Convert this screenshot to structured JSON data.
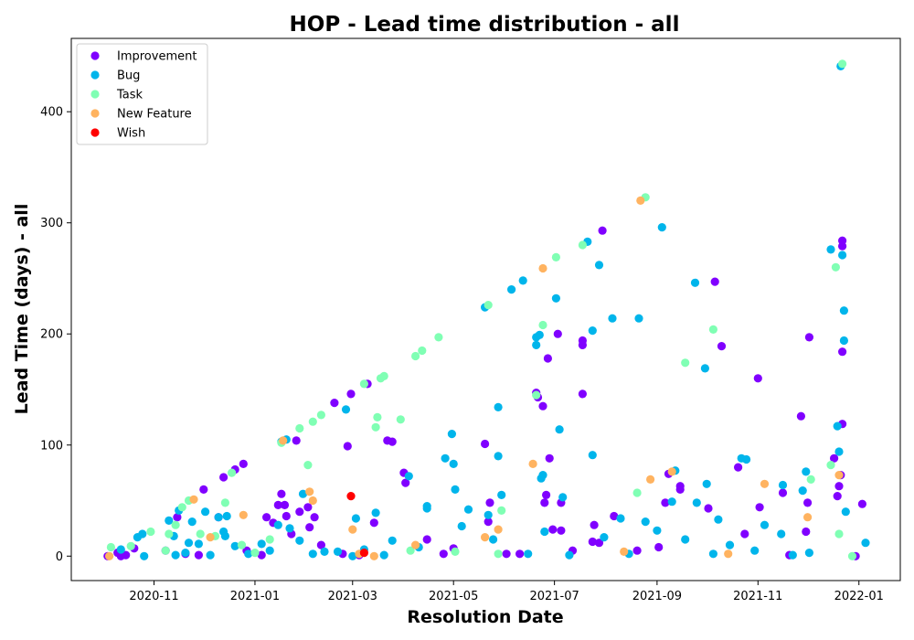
{
  "chart_data": {
    "type": "scatter",
    "title": "HOP - Lead time distribution - all",
    "xlabel": "Resolution Date",
    "ylabel": "Lead Time (days) - all",
    "x_ticks": [
      "2020-11",
      "2021-01",
      "2021-03",
      "2021-05",
      "2021-07",
      "2021-09",
      "2021-11",
      "2022-01"
    ],
    "y_ticks": [
      0,
      100,
      200,
      300,
      400
    ],
    "xlim": [
      "2020-09-12",
      "2022-01-26"
    ],
    "ylim": [
      -22,
      466
    ],
    "legend_position": "upper-left",
    "grid": false,
    "series": [
      {
        "name": "Improvement",
        "color": "#8000ff",
        "points": [
          [
            "2020-10-04",
            0
          ],
          [
            "2020-10-10",
            3
          ],
          [
            "2020-10-12",
            0
          ],
          [
            "2020-10-15",
            1
          ],
          [
            "2020-10-20",
            7
          ],
          [
            "2020-11-08",
            5
          ],
          [
            "2020-11-15",
            35
          ],
          [
            "2020-11-20",
            2
          ],
          [
            "2020-11-28",
            1
          ],
          [
            "2020-12-01",
            60
          ],
          [
            "2020-12-10",
            35
          ],
          [
            "2020-12-13",
            71
          ],
          [
            "2020-12-20",
            78
          ],
          [
            "2020-12-25",
            83
          ],
          [
            "2020-12-27",
            5
          ],
          [
            "2021-01-05",
            1
          ],
          [
            "2021-01-08",
            35
          ],
          [
            "2021-01-12",
            30
          ],
          [
            "2021-01-15",
            46
          ],
          [
            "2021-01-17",
            56
          ],
          [
            "2021-01-19",
            46
          ],
          [
            "2021-01-20",
            36
          ],
          [
            "2021-01-23",
            20
          ],
          [
            "2021-01-26",
            104
          ],
          [
            "2021-01-28",
            40
          ],
          [
            "2021-02-02",
            44
          ],
          [
            "2021-02-03",
            26
          ],
          [
            "2021-02-06",
            35
          ],
          [
            "2021-02-10",
            10
          ],
          [
            "2021-02-18",
            138
          ],
          [
            "2021-02-23",
            2
          ],
          [
            "2021-02-26",
            99
          ],
          [
            "2021-02-28",
            146
          ],
          [
            "2021-03-05",
            1
          ],
          [
            "2021-03-10",
            155
          ],
          [
            "2021-03-14",
            30
          ],
          [
            "2021-03-22",
            104
          ],
          [
            "2021-03-25",
            103
          ],
          [
            "2021-04-01",
            75
          ],
          [
            "2021-04-02",
            66
          ],
          [
            "2021-04-15",
            15
          ],
          [
            "2021-04-25",
            2
          ],
          [
            "2021-05-01",
            7
          ],
          [
            "2021-05-20",
            101
          ],
          [
            "2021-05-22",
            31
          ],
          [
            "2021-05-23",
            48
          ],
          [
            "2021-06-02",
            2
          ],
          [
            "2021-06-10",
            2
          ],
          [
            "2021-06-20",
            147
          ],
          [
            "2021-06-21",
            143
          ],
          [
            "2021-06-24",
            135
          ],
          [
            "2021-06-25",
            48
          ],
          [
            "2021-06-26",
            55
          ],
          [
            "2021-06-27",
            178
          ],
          [
            "2021-06-28",
            88
          ],
          [
            "2021-06-30",
            24
          ],
          [
            "2021-07-03",
            200
          ],
          [
            "2021-07-05",
            48
          ],
          [
            "2021-07-05",
            23
          ],
          [
            "2021-07-12",
            5
          ],
          [
            "2021-07-18",
            146
          ],
          [
            "2021-07-18",
            194
          ],
          [
            "2021-07-18",
            190
          ],
          [
            "2021-07-24",
            13
          ],
          [
            "2021-07-25",
            28
          ],
          [
            "2021-07-28",
            12
          ],
          [
            "2021-07-30",
            293
          ],
          [
            "2021-08-06",
            36
          ],
          [
            "2021-08-20",
            5
          ],
          [
            "2021-09-02",
            8
          ],
          [
            "2021-09-06",
            48
          ],
          [
            "2021-09-08",
            74
          ],
          [
            "2021-09-15",
            60
          ],
          [
            "2021-09-15",
            63
          ],
          [
            "2021-10-02",
            43
          ],
          [
            "2021-10-06",
            247
          ],
          [
            "2021-10-10",
            189
          ],
          [
            "2021-10-20",
            80
          ],
          [
            "2021-10-24",
            20
          ],
          [
            "2021-11-01",
            160
          ],
          [
            "2021-11-02",
            44
          ],
          [
            "2021-11-16",
            57
          ],
          [
            "2021-11-20",
            1
          ],
          [
            "2021-11-27",
            126
          ],
          [
            "2021-11-30",
            22
          ],
          [
            "2021-12-02",
            197
          ],
          [
            "2021-12-01",
            48
          ],
          [
            "2021-12-17",
            88
          ],
          [
            "2021-12-19",
            54
          ],
          [
            "2021-12-20",
            63
          ],
          [
            "2021-12-21",
            73
          ],
          [
            "2021-12-22",
            284
          ],
          [
            "2021-12-22",
            279
          ],
          [
            "2021-12-22",
            184
          ],
          [
            "2021-12-22",
            119
          ],
          [
            "2021-12-30",
            0
          ],
          [
            "2022-01-03",
            47
          ]
        ]
      },
      {
        "name": "Bug",
        "color": "#00b5eb",
        "points": [
          [
            "2020-10-12",
            6
          ],
          [
            "2020-10-22",
            17
          ],
          [
            "2020-10-25",
            20
          ],
          [
            "2020-10-26",
            0
          ],
          [
            "2020-11-10",
            32
          ],
          [
            "2020-11-13",
            18
          ],
          [
            "2020-11-14",
            1
          ],
          [
            "2020-11-16",
            41
          ],
          [
            "2020-11-20",
            3
          ],
          [
            "2020-11-22",
            12
          ],
          [
            "2020-11-24",
            31
          ],
          [
            "2020-11-28",
            11
          ],
          [
            "2020-12-02",
            40
          ],
          [
            "2020-12-05",
            1
          ],
          [
            "2020-12-10",
            35
          ],
          [
            "2020-12-13",
            22
          ],
          [
            "2020-12-14",
            18
          ],
          [
            "2020-12-15",
            36
          ],
          [
            "2020-12-20",
            9
          ],
          [
            "2020-12-28",
            2
          ],
          [
            "2021-01-05",
            11
          ],
          [
            "2021-01-10",
            5
          ],
          [
            "2021-01-15",
            28
          ],
          [
            "2021-01-17",
            103
          ],
          [
            "2021-01-20",
            105
          ],
          [
            "2021-01-22",
            25
          ],
          [
            "2021-01-28",
            14
          ],
          [
            "2021-01-30",
            56
          ],
          [
            "2021-02-05",
            2
          ],
          [
            "2021-02-12",
            4
          ],
          [
            "2021-02-20",
            4
          ],
          [
            "2021-02-25",
            132
          ],
          [
            "2021-03-01",
            0
          ],
          [
            "2021-03-03",
            34
          ],
          [
            "2021-03-08",
            6
          ],
          [
            "2021-03-15",
            39
          ],
          [
            "2021-03-20",
            1
          ],
          [
            "2021-03-25",
            14
          ],
          [
            "2021-04-04",
            72
          ],
          [
            "2021-04-10",
            8
          ],
          [
            "2021-04-15",
            43
          ],
          [
            "2021-04-15",
            45
          ],
          [
            "2021-04-26",
            88
          ],
          [
            "2021-04-30",
            110
          ],
          [
            "2021-05-01",
            83
          ],
          [
            "2021-05-02",
            60
          ],
          [
            "2021-05-06",
            27
          ],
          [
            "2021-05-10",
            42
          ],
          [
            "2021-05-20",
            224
          ],
          [
            "2021-05-22",
            37
          ],
          [
            "2021-05-25",
            15
          ],
          [
            "2021-05-28",
            134
          ],
          [
            "2021-05-28",
            90
          ],
          [
            "2021-05-30",
            55
          ],
          [
            "2021-06-05",
            240
          ],
          [
            "2021-06-12",
            248
          ],
          [
            "2021-06-15",
            2
          ],
          [
            "2021-06-20",
            197
          ],
          [
            "2021-06-20",
            190
          ],
          [
            "2021-06-22",
            199
          ],
          [
            "2021-06-23",
            70
          ],
          [
            "2021-06-24",
            73
          ],
          [
            "2021-06-25",
            22
          ],
          [
            "2021-07-02",
            232
          ],
          [
            "2021-07-04",
            114
          ],
          [
            "2021-07-06",
            53
          ],
          [
            "2021-07-10",
            1
          ],
          [
            "2021-07-21",
            283
          ],
          [
            "2021-07-24",
            91
          ],
          [
            "2021-07-24",
            203
          ],
          [
            "2021-07-28",
            262
          ],
          [
            "2021-07-31",
            17
          ],
          [
            "2021-08-05",
            214
          ],
          [
            "2021-08-10",
            34
          ],
          [
            "2021-08-15",
            2
          ],
          [
            "2021-08-21",
            214
          ],
          [
            "2021-08-25",
            31
          ],
          [
            "2021-09-01",
            23
          ],
          [
            "2021-09-04",
            296
          ],
          [
            "2021-09-10",
            49
          ],
          [
            "2021-09-12",
            77
          ],
          [
            "2021-09-18",
            15
          ],
          [
            "2021-09-24",
            246
          ],
          [
            "2021-09-25",
            48
          ],
          [
            "2021-09-30",
            169
          ],
          [
            "2021-10-01",
            65
          ],
          [
            "2021-10-05",
            2
          ],
          [
            "2021-10-08",
            33
          ],
          [
            "2021-10-15",
            10
          ],
          [
            "2021-10-22",
            88
          ],
          [
            "2021-10-25",
            87
          ],
          [
            "2021-10-30",
            5
          ],
          [
            "2021-11-05",
            28
          ],
          [
            "2021-11-15",
            20
          ],
          [
            "2021-11-16",
            64
          ],
          [
            "2021-11-22",
            1
          ],
          [
            "2021-11-28",
            59
          ],
          [
            "2021-11-30",
            76
          ],
          [
            "2021-12-02",
            3
          ],
          [
            "2021-12-15",
            276
          ],
          [
            "2021-12-19",
            117
          ],
          [
            "2021-12-20",
            94
          ],
          [
            "2021-12-21",
            441
          ],
          [
            "2021-12-22",
            271
          ],
          [
            "2021-12-23",
            221
          ],
          [
            "2021-12-23",
            194
          ],
          [
            "2021-12-24",
            40
          ],
          [
            "2022-01-05",
            12
          ]
        ]
      },
      {
        "name": "Task",
        "color": "#80ffb4",
        "points": [
          [
            "2020-10-06",
            8
          ],
          [
            "2020-10-18",
            9
          ],
          [
            "2020-10-30",
            22
          ],
          [
            "2020-11-08",
            5
          ],
          [
            "2020-11-10",
            20
          ],
          [
            "2020-11-14",
            28
          ],
          [
            "2020-11-18",
            44
          ],
          [
            "2020-11-22",
            50
          ],
          [
            "2020-11-29",
            20
          ],
          [
            "2020-12-08",
            18
          ],
          [
            "2020-12-14",
            48
          ],
          [
            "2020-12-18",
            75
          ],
          [
            "2020-12-24",
            10
          ],
          [
            "2021-01-01",
            3
          ],
          [
            "2021-01-10",
            15
          ],
          [
            "2021-01-17",
            102
          ],
          [
            "2021-01-28",
            115
          ],
          [
            "2021-02-02",
            82
          ],
          [
            "2021-02-05",
            121
          ],
          [
            "2021-02-10",
            127
          ],
          [
            "2021-03-08",
            155
          ],
          [
            "2021-03-15",
            116
          ],
          [
            "2021-03-16",
            125
          ],
          [
            "2021-03-18",
            160
          ],
          [
            "2021-03-20",
            162
          ],
          [
            "2021-03-30",
            123
          ],
          [
            "2021-04-05",
            5
          ],
          [
            "2021-04-08",
            180
          ],
          [
            "2021-04-12",
            185
          ],
          [
            "2021-04-22",
            197
          ],
          [
            "2021-05-02",
            4
          ],
          [
            "2021-05-22",
            226
          ],
          [
            "2021-05-28",
            2
          ],
          [
            "2021-05-30",
            41
          ],
          [
            "2021-06-20",
            145
          ],
          [
            "2021-06-24",
            208
          ],
          [
            "2021-07-02",
            269
          ],
          [
            "2021-07-18",
            280
          ],
          [
            "2021-08-20",
            57
          ],
          [
            "2021-08-25",
            323
          ],
          [
            "2021-09-18",
            174
          ],
          [
            "2021-10-05",
            204
          ],
          [
            "2021-12-15",
            82
          ],
          [
            "2021-12-18",
            260
          ],
          [
            "2021-12-20",
            20
          ],
          [
            "2021-12-22",
            443
          ],
          [
            "2021-12-03",
            69
          ],
          [
            "2021-12-28",
            0
          ]
        ]
      },
      {
        "name": "New Feature",
        "color": "#ffb360",
        "points": [
          [
            "2020-10-05",
            0
          ],
          [
            "2020-11-25",
            51
          ],
          [
            "2020-12-05",
            17
          ],
          [
            "2020-12-25",
            37
          ],
          [
            "2021-01-18",
            104
          ],
          [
            "2021-02-03",
            58
          ],
          [
            "2021-02-05",
            50
          ],
          [
            "2021-03-01",
            24
          ],
          [
            "2021-03-05",
            2
          ],
          [
            "2021-03-14",
            0
          ],
          [
            "2021-04-08",
            10
          ],
          [
            "2021-05-20",
            17
          ],
          [
            "2021-05-28",
            24
          ],
          [
            "2021-06-18",
            83
          ],
          [
            "2021-06-24",
            259
          ],
          [
            "2021-08-12",
            4
          ],
          [
            "2021-08-22",
            320
          ],
          [
            "2021-08-28",
            69
          ],
          [
            "2021-09-10",
            76
          ],
          [
            "2021-10-14",
            2
          ],
          [
            "2021-11-05",
            65
          ],
          [
            "2021-12-01",
            35
          ],
          [
            "2021-12-20",
            73
          ]
        ]
      },
      {
        "name": "Wish",
        "color": "#ff0000",
        "points": [
          [
            "2021-02-28",
            54
          ],
          [
            "2021-03-08",
            3
          ]
        ]
      }
    ]
  }
}
